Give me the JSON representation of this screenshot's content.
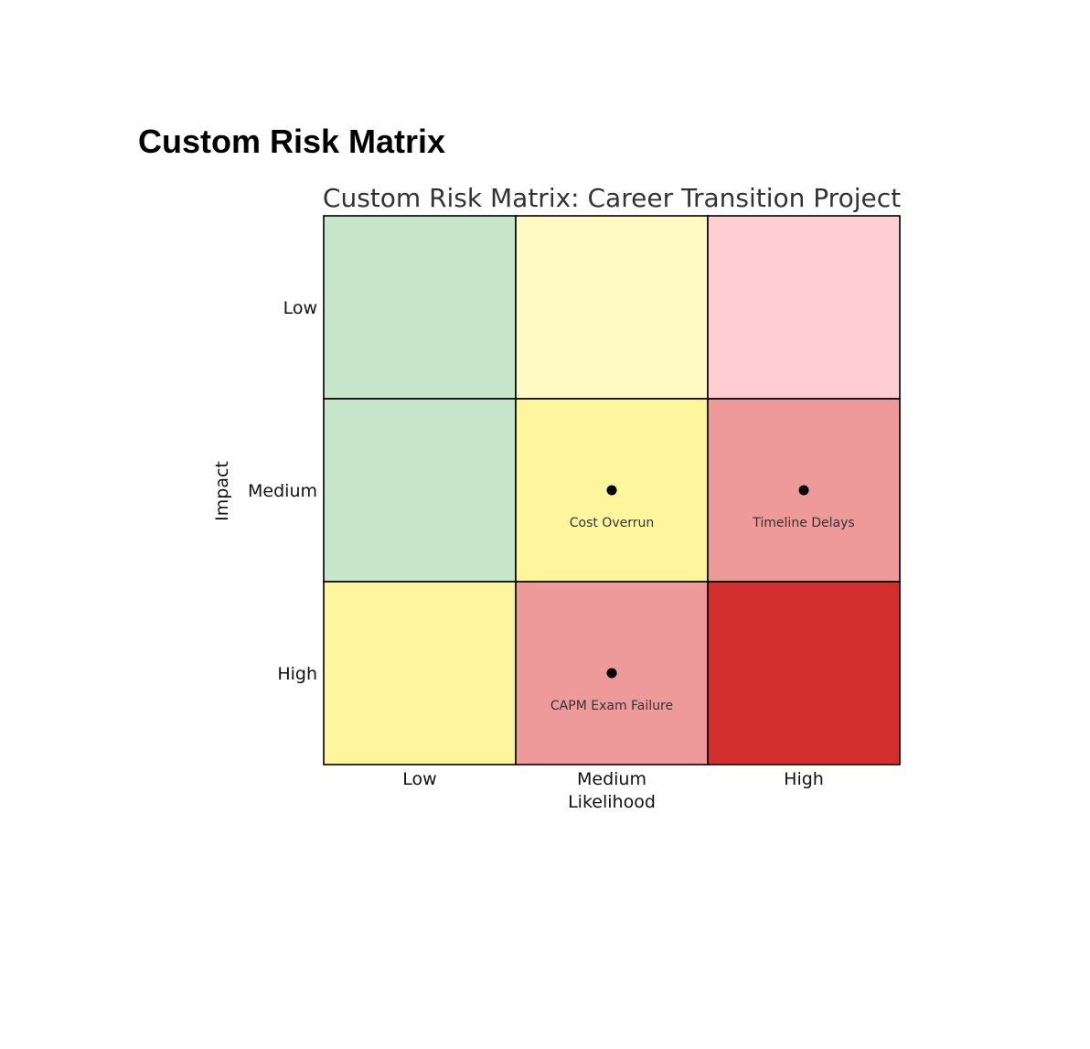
{
  "page": {
    "heading": "Custom Risk Matrix"
  },
  "chart_data": {
    "type": "heatmap",
    "title": "Custom Risk Matrix: Career Transition Project",
    "xlabel": "Likelihood",
    "ylabel": "Impact",
    "x_categories": [
      "Low",
      "Medium",
      "High"
    ],
    "y_categories": [
      "Low",
      "Medium",
      "High"
    ],
    "cell_colors": [
      [
        "#c8e6c9",
        "#fff9c4",
        "#ffcdd2"
      ],
      [
        "#c8e6c9",
        "#fff59d",
        "#ef9a9a"
      ],
      [
        "#fff59d",
        "#ef9a9a",
        "#d32f2f"
      ]
    ],
    "risks": [
      {
        "name": "Cost Overrun",
        "likelihood": "Medium",
        "impact": "Medium"
      },
      {
        "name": "Timeline Delays",
        "likelihood": "High",
        "impact": "Medium"
      },
      {
        "name": "CAPM Exam Failure",
        "likelihood": "Medium",
        "impact": "High"
      }
    ],
    "grid": false,
    "legend": "none"
  }
}
